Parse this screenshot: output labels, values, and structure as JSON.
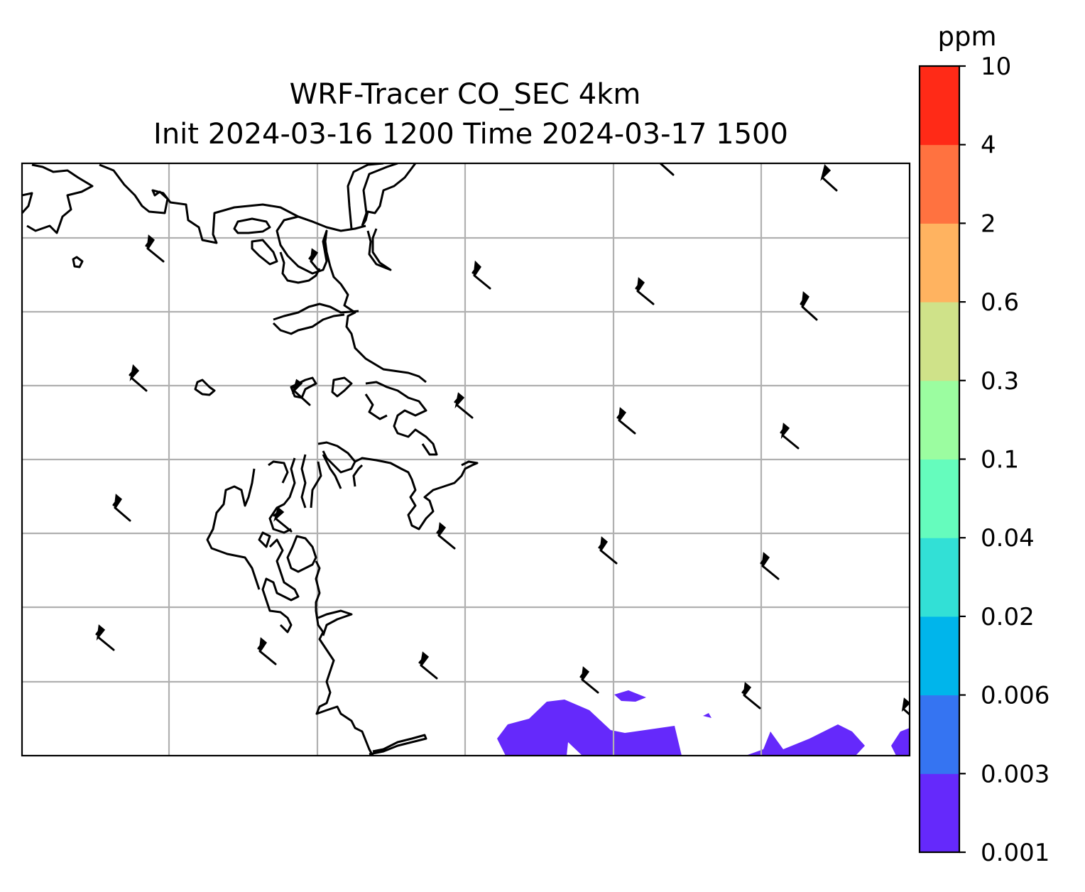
{
  "title": {
    "line1": "WRF-Tracer CO_SEC 4km",
    "line2": "Init 2024-03-16 1200 Time 2024-03-17 1500"
  },
  "map": {
    "gridlines": true,
    "grid_color": "#b0b0b0",
    "coastline_color": "#000000",
    "wind_barbs": true,
    "shaded_field": "CO_SEC tracer concentration",
    "shaded_color": "#6529fb"
  },
  "colorbar": {
    "unit": "ppm",
    "orientation": "vertical",
    "placement": "right",
    "levels": [
      "0.001",
      "0.003",
      "0.006",
      "0.02",
      "0.04",
      "0.1",
      "0.3",
      "0.6",
      "2",
      "4",
      "10"
    ],
    "colors": [
      "#6529fb",
      "#3574f2",
      "#00b5eb",
      "#32e0d6",
      "#65fcbd",
      "#9bfda0",
      "#cfe289",
      "#ffb360",
      "#ff7240",
      "#ff2a17"
    ]
  }
}
